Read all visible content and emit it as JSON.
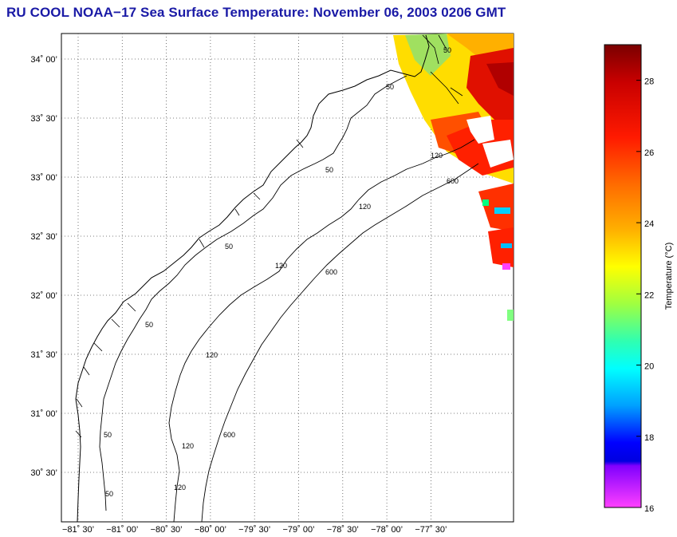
{
  "title": "RU COOL  NOAA−17  Sea Surface Temperature:  November 06, 2003 0206 GMT",
  "map": {
    "lat_ticks": [
      "34˚ 00’",
      "33˚ 30’",
      "33˚ 00’",
      "32˚ 30’",
      "32˚ 00’",
      "31˚ 30’",
      "31˚ 00’",
      "30˚ 30’"
    ],
    "lon_ticks": [
      "−81˚ 30’",
      "−81˚ 00’",
      "−80˚ 30’",
      "−80˚ 00’",
      "−79˚ 30’",
      "−79˚ 00’",
      "−78˚ 30’",
      "−78˚ 00’",
      "−77˚ 30’"
    ],
    "contour_labels": [
      "50",
      "50",
      "50",
      "50",
      "50",
      "50",
      "50",
      "120",
      "120",
      "120",
      "120",
      "120",
      "120",
      "600",
      "600",
      "600"
    ]
  },
  "colorbar": {
    "label": "Temperature (°C)",
    "ticks": [
      "28",
      "26",
      "24",
      "22",
      "20",
      "18",
      "16"
    ],
    "min": 16,
    "max": 29
  }
}
